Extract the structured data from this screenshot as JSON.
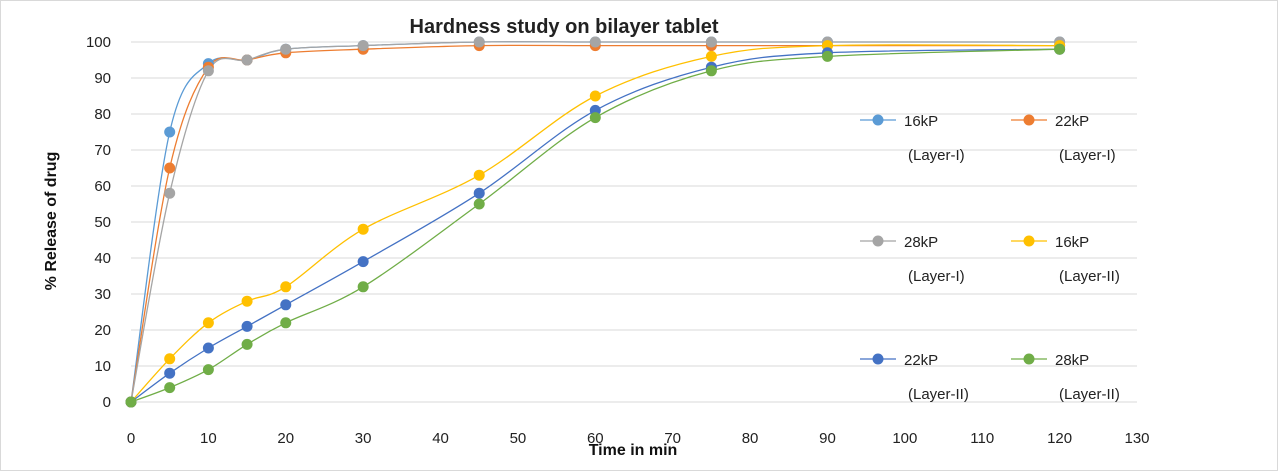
{
  "chart_data": {
    "type": "scatter",
    "title": "Hardness study on bilayer tablet",
    "xlabel": "Time in min",
    "ylabel": "% Release  of drug",
    "xlim": [
      0,
      130
    ],
    "ylim": [
      0,
      100
    ],
    "x_ticks": [
      "0",
      "10",
      "20",
      "30",
      "40",
      "50",
      "60",
      "70",
      "80",
      "90",
      "100",
      "110",
      "120",
      "130"
    ],
    "y_ticks": [
      "0",
      "10",
      "20",
      "30",
      "40",
      "50",
      "60",
      "70",
      "80",
      "90",
      "100"
    ],
    "grid": "horizontal",
    "legend_position": "right",
    "series": [
      {
        "name": "16kP",
        "sub": "(Layer-I)",
        "color": "#5b9bd5",
        "points": [
          [
            0,
            0
          ],
          [
            5,
            75
          ],
          [
            10,
            94
          ],
          [
            15,
            95
          ],
          [
            20,
            98
          ],
          [
            30,
            99
          ],
          [
            45,
            100
          ],
          [
            60,
            100
          ],
          [
            75,
            100
          ],
          [
            90,
            100
          ],
          [
            120,
            100
          ]
        ]
      },
      {
        "name": "22kP",
        "sub": "(Layer-I)",
        "color": "#ed7d31",
        "points": [
          [
            0,
            0
          ],
          [
            5,
            65
          ],
          [
            10,
            93
          ],
          [
            15,
            95
          ],
          [
            20,
            97
          ],
          [
            30,
            98
          ],
          [
            45,
            99
          ],
          [
            60,
            99
          ],
          [
            75,
            99
          ],
          [
            90,
            99
          ],
          [
            120,
            99
          ]
        ]
      },
      {
        "name": "28kP",
        "sub": "(Layer-I)",
        "color": "#a5a5a5",
        "points": [
          [
            0,
            0
          ],
          [
            5,
            58
          ],
          [
            10,
            92
          ],
          [
            15,
            95
          ],
          [
            20,
            98
          ],
          [
            30,
            99
          ],
          [
            45,
            100
          ],
          [
            60,
            100
          ],
          [
            75,
            100
          ],
          [
            90,
            100
          ],
          [
            120,
            100
          ]
        ]
      },
      {
        "name": "16kP",
        "sub": "(Layer-II)",
        "color": "#ffc000",
        "points": [
          [
            0,
            0
          ],
          [
            5,
            12
          ],
          [
            10,
            22
          ],
          [
            15,
            28
          ],
          [
            20,
            32
          ],
          [
            30,
            48
          ],
          [
            45,
            63
          ],
          [
            60,
            85
          ],
          [
            75,
            96
          ],
          [
            90,
            99
          ],
          [
            120,
            99
          ]
        ]
      },
      {
        "name": "22kP",
        "sub": "(Layer-II)",
        "color": "#4472c4",
        "points": [
          [
            0,
            0
          ],
          [
            5,
            8
          ],
          [
            10,
            15
          ],
          [
            15,
            21
          ],
          [
            20,
            27
          ],
          [
            30,
            39
          ],
          [
            45,
            58
          ],
          [
            60,
            81
          ],
          [
            75,
            93
          ],
          [
            90,
            97
          ],
          [
            120,
            98
          ]
        ]
      },
      {
        "name": "28kP",
        "sub": "(Layer-II)",
        "color": "#70ad47",
        "points": [
          [
            0,
            0
          ],
          [
            5,
            4
          ],
          [
            10,
            9
          ],
          [
            15,
            16
          ],
          [
            20,
            22
          ],
          [
            30,
            32
          ],
          [
            45,
            55
          ],
          [
            60,
            79
          ],
          [
            75,
            92
          ],
          [
            90,
            96
          ],
          [
            120,
            98
          ]
        ]
      }
    ]
  }
}
